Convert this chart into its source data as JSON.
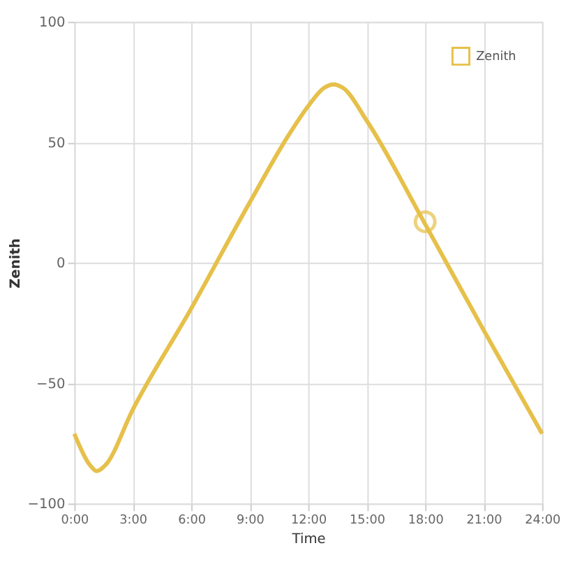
{
  "chart_data": {
    "type": "line",
    "xlabel": "Time",
    "ylabel": "Zenith",
    "xlim": [
      0,
      24
    ],
    "ylim": [
      -100,
      100
    ],
    "xticks": [
      {
        "value": 0,
        "label": "0:00"
      },
      {
        "value": 3,
        "label": "3:00"
      },
      {
        "value": 6,
        "label": "6:00"
      },
      {
        "value": 9,
        "label": "9:00"
      },
      {
        "value": 12,
        "label": "12:00"
      },
      {
        "value": 15,
        "label": "15:00"
      },
      {
        "value": 18,
        "label": "18:00"
      },
      {
        "value": 21,
        "label": "21:00"
      },
      {
        "value": 24,
        "label": "24:00"
      }
    ],
    "yticks": [
      -100,
      -50,
      0,
      50,
      100
    ],
    "grid": true,
    "legend": "top right",
    "series": [
      {
        "name": "Zenith",
        "color": "#e6c04a",
        "marker": "none",
        "x": [
          0,
          0.8,
          1.15,
          1.6,
          3,
          6,
          9,
          11,
          12,
          12.8,
          13.3,
          13.8,
          15,
          18,
          21,
          24
        ],
        "values": [
          -71,
          -84,
          -86.5,
          -84,
          -61,
          -19,
          25,
          53,
          65,
          72.5,
          74,
          72.5,
          59,
          16,
          -28,
          -71
        ]
      },
      {
        "type": "scatter",
        "color": "#e6c04a",
        "marker": "circle",
        "x": [
          18
        ],
        "values": [
          17
        ]
      }
    ]
  }
}
